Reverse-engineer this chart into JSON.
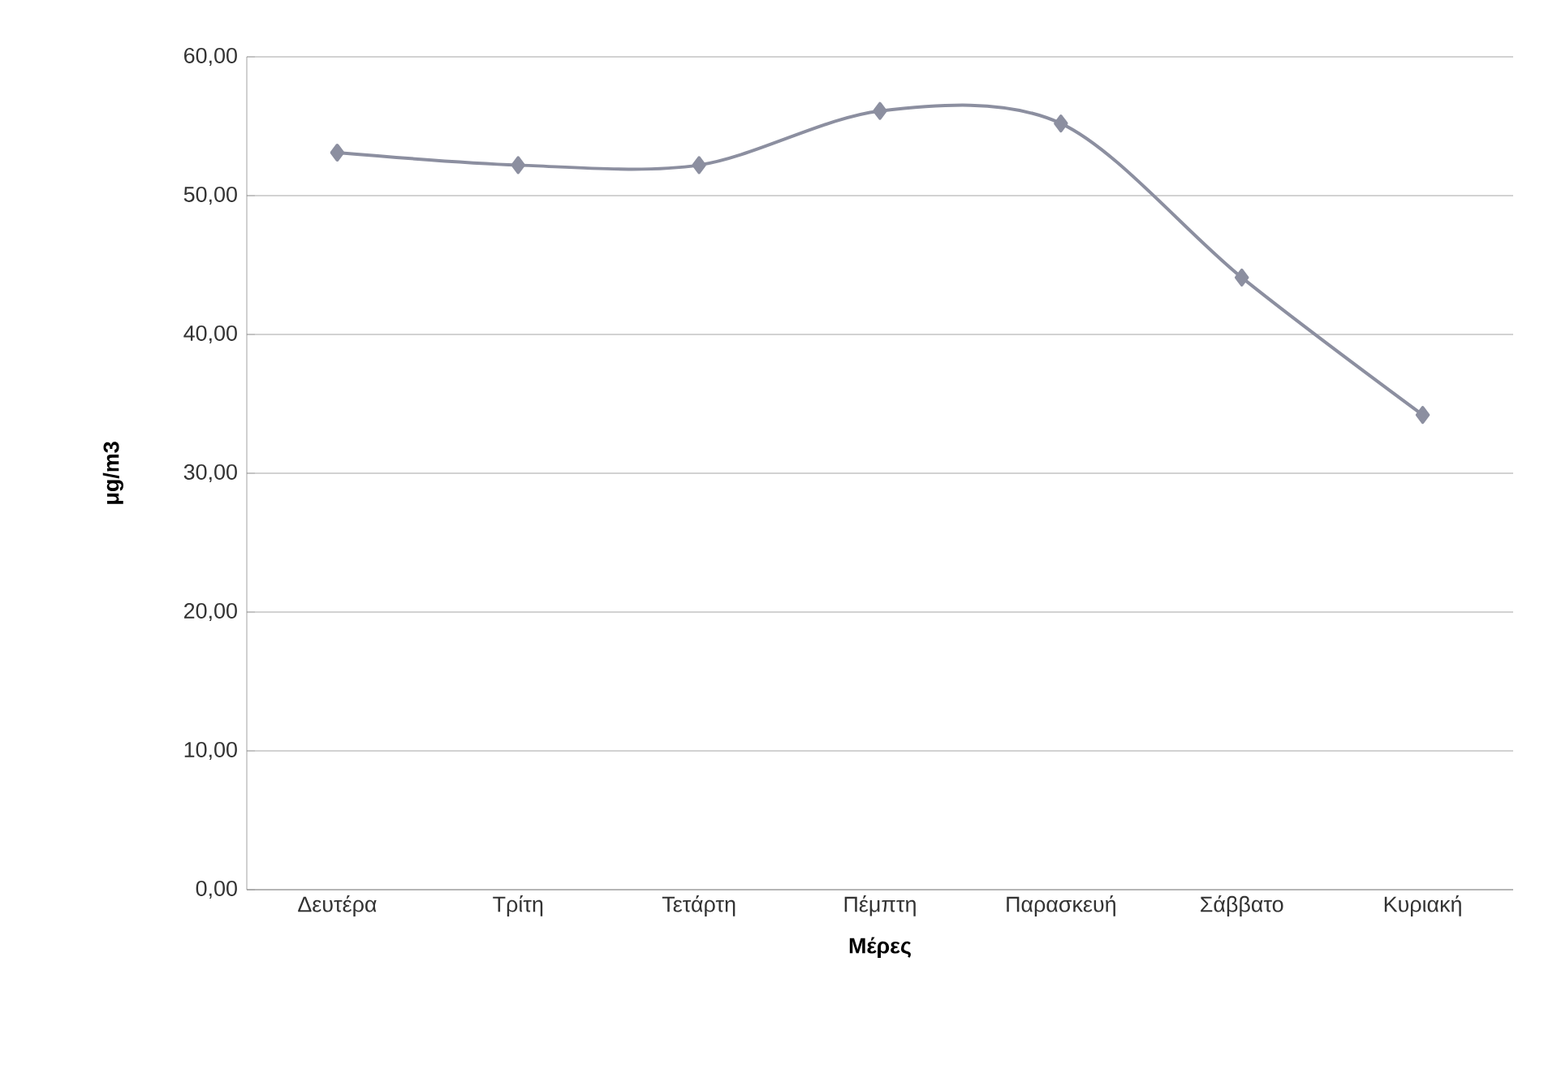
{
  "chart_data": {
    "type": "line",
    "xlabel": "Μέρες",
    "ylabel": "μg/m3",
    "categories": [
      "Δευτέρα",
      "Τρίτη",
      "Τετάρτη",
      "Πέμπτη",
      "Παρασκευή",
      "Σάββατο",
      "Κυριακή"
    ],
    "series": [
      {
        "color": "#8c8fa0",
        "values": [
          53.1,
          52.2,
          52.2,
          56.1,
          55.2,
          44.1,
          34.2
        ]
      }
    ],
    "ylim": [
      0,
      60
    ],
    "yticks": [
      {
        "value": 0,
        "label": "0,00"
      },
      {
        "value": 10,
        "label": "10,00"
      },
      {
        "value": 20,
        "label": "20,00"
      },
      {
        "value": 30,
        "label": "30,00"
      },
      {
        "value": 40,
        "label": "40,00"
      },
      {
        "value": 50,
        "label": "50,00"
      },
      {
        "value": 60,
        "label": "60,00"
      }
    ],
    "grid": "y",
    "marker": "diamond",
    "line_style": "solid",
    "legend": false
  }
}
